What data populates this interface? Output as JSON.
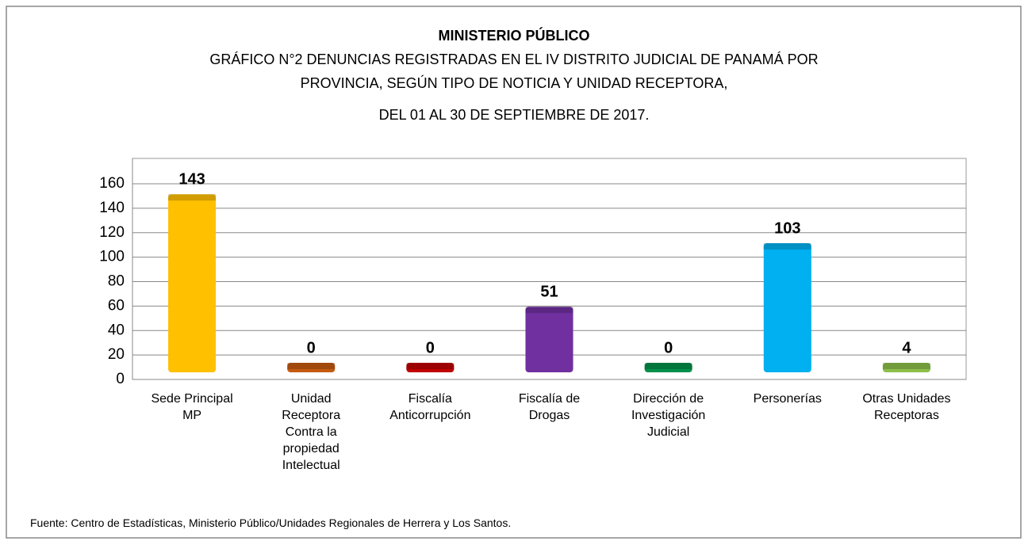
{
  "chart_data": {
    "type": "bar",
    "title": "MINISTERIO PÚBLICO",
    "subtitle": [
      "GRÁFICO N°2  DENUNCIAS REGISTRADAS EN EL IV DISTRITO JUDICIAL DE PANAMÁ POR",
      "PROVINCIA, SEGÚN TIPO DE NOTICIA Y UNIDAD RECEPTORA,",
      "DEL 01 AL 30 DE SEPTIEMBRE DE 2017."
    ],
    "categories": [
      "Sede Principal MP",
      "Unidad Receptora Contra la propiedad Intelectual",
      "Fiscalía Anticorrupción",
      "Fiscalía de Drogas",
      "Dirección de Investigación Judicial",
      "Personerías",
      "Otras Unidades Receptoras"
    ],
    "values": [
      143,
      0,
      0,
      51,
      0,
      103,
      4
    ],
    "colors": [
      "#ffc000",
      "#c55a11",
      "#c00000",
      "#7030a0",
      "#00904a",
      "#00b0f0",
      "#8cbf4a"
    ],
    "ylim": [
      0,
      160
    ],
    "yticks": [
      0,
      20,
      40,
      60,
      80,
      100,
      120,
      140,
      160
    ],
    "grid": true,
    "source": "Fuente: Centro de Estadísticas, Ministerio Público/Unidades Regionales de Herrera y Los Santos."
  }
}
